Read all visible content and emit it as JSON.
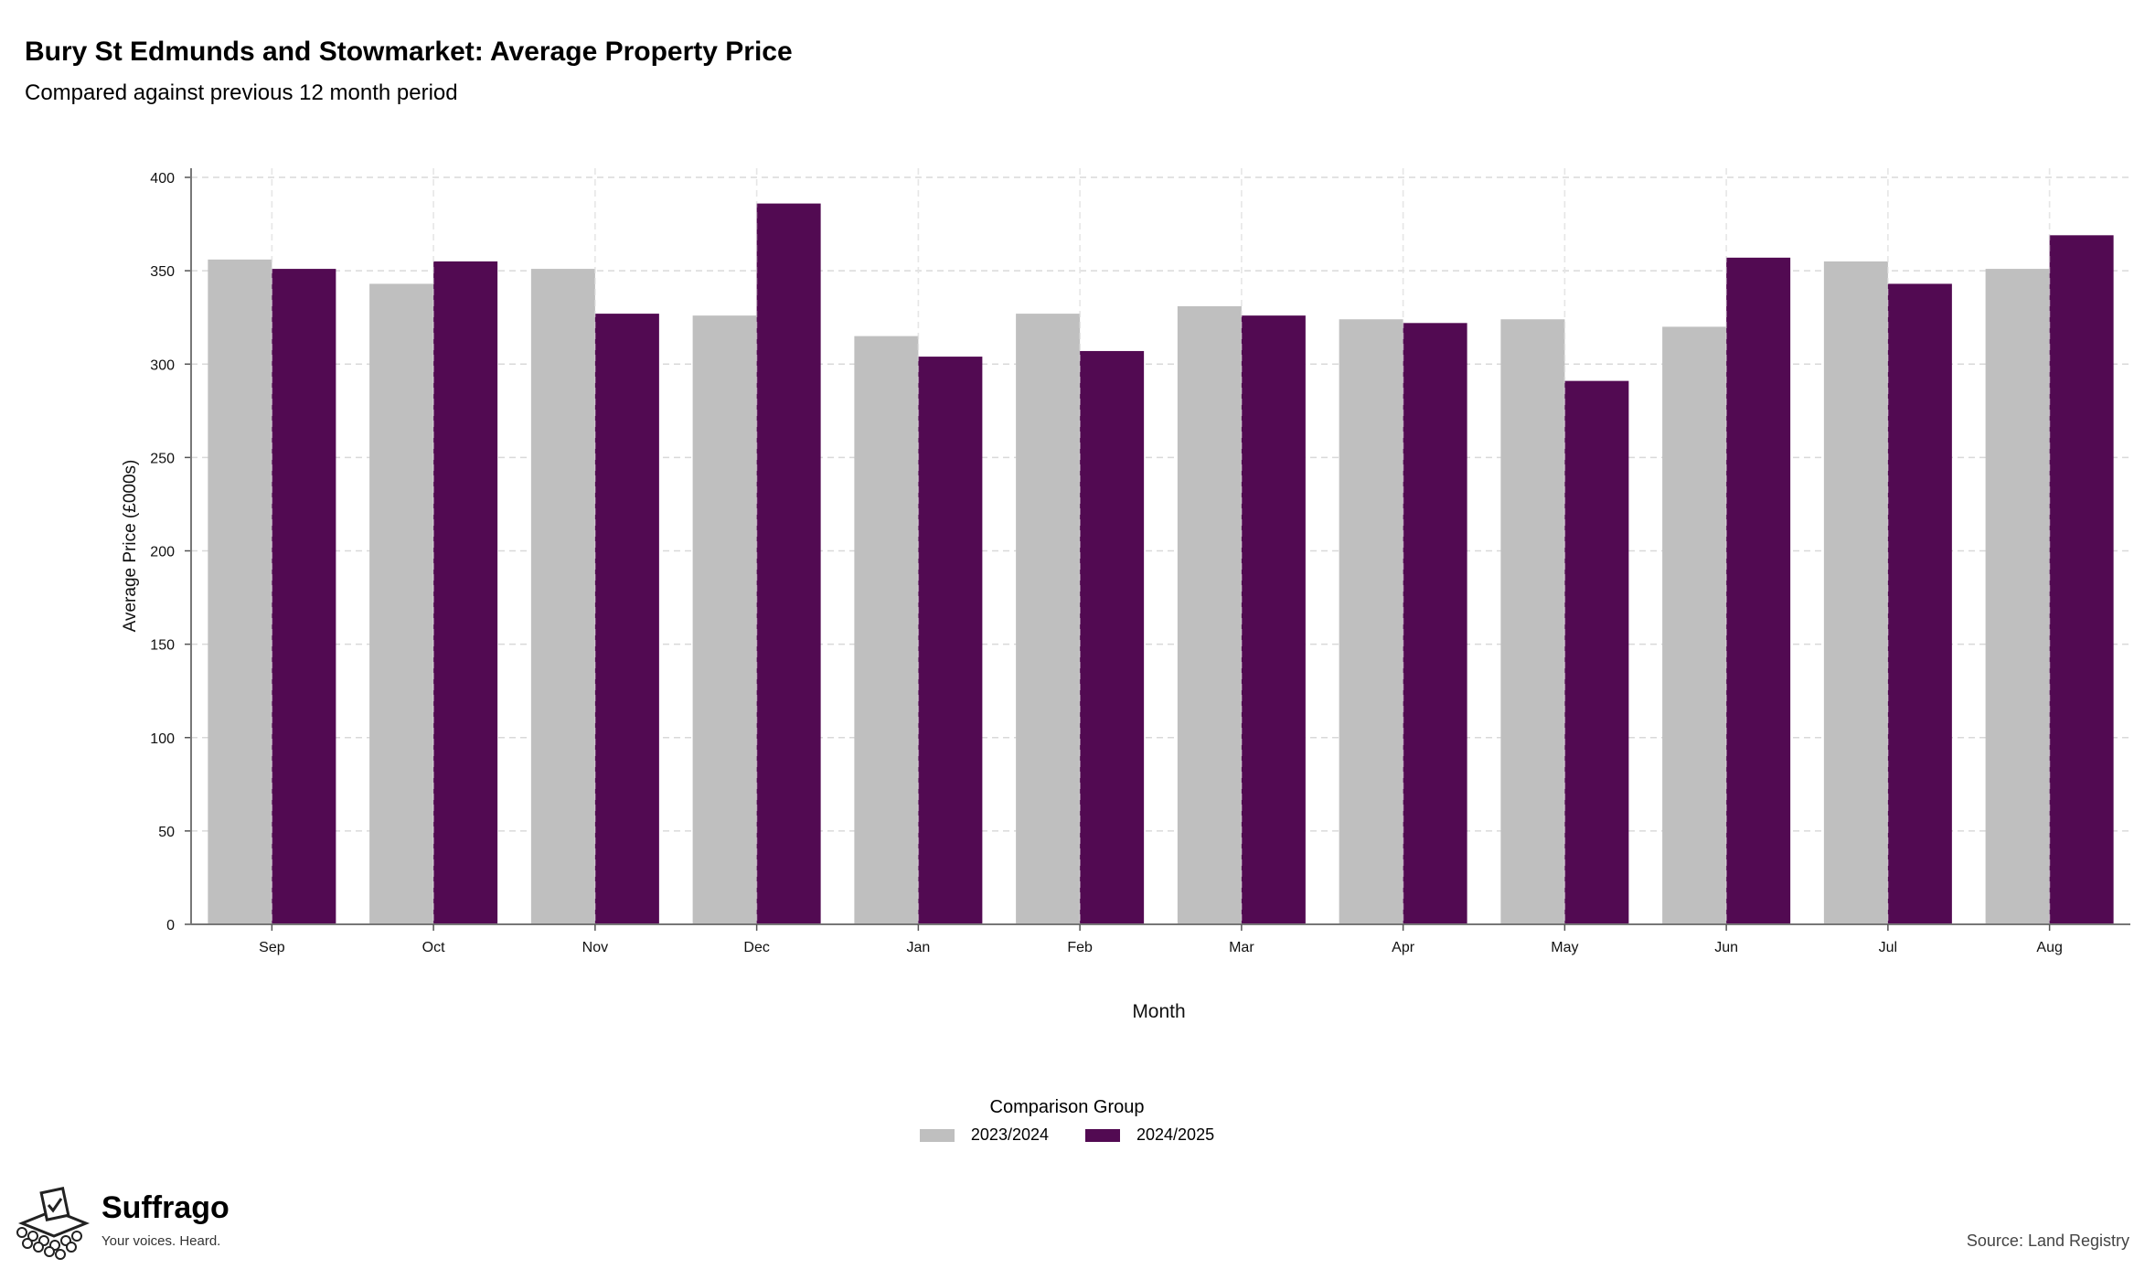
{
  "title": "Bury St Edmunds and Stowmarket: Average Property Price",
  "subtitle": "Compared against previous 12 month period",
  "source": "Source: Land Registry",
  "logo": {
    "name": "Suffrago",
    "tagline": "Your voices. Heard."
  },
  "colors": {
    "prev": "#bfbfbf",
    "curr": "#520a52"
  },
  "chart_data": {
    "type": "bar",
    "xlabel": "Month",
    "ylabel": "Average Price (£000s)",
    "ylim": [
      0,
      400
    ],
    "yticks": [
      0,
      50,
      100,
      150,
      200,
      250,
      300,
      350,
      400
    ],
    "grid": true,
    "legend_position": "bottom",
    "legend_title": "Comparison Group",
    "categories": [
      "Sep",
      "Oct",
      "Nov",
      "Dec",
      "Jan",
      "Feb",
      "Mar",
      "Apr",
      "May",
      "Jun",
      "Jul",
      "Aug"
    ],
    "series": [
      {
        "name": "2023/2024",
        "color": "#bfbfbf",
        "values": [
          356,
          343,
          351,
          326,
          315,
          327,
          331,
          324,
          324,
          320,
          355,
          351
        ]
      },
      {
        "name": "2024/2025",
        "color": "#520a52",
        "values": [
          351,
          355,
          327,
          386,
          304,
          307,
          326,
          322,
          291,
          357,
          343,
          369
        ]
      }
    ]
  }
}
